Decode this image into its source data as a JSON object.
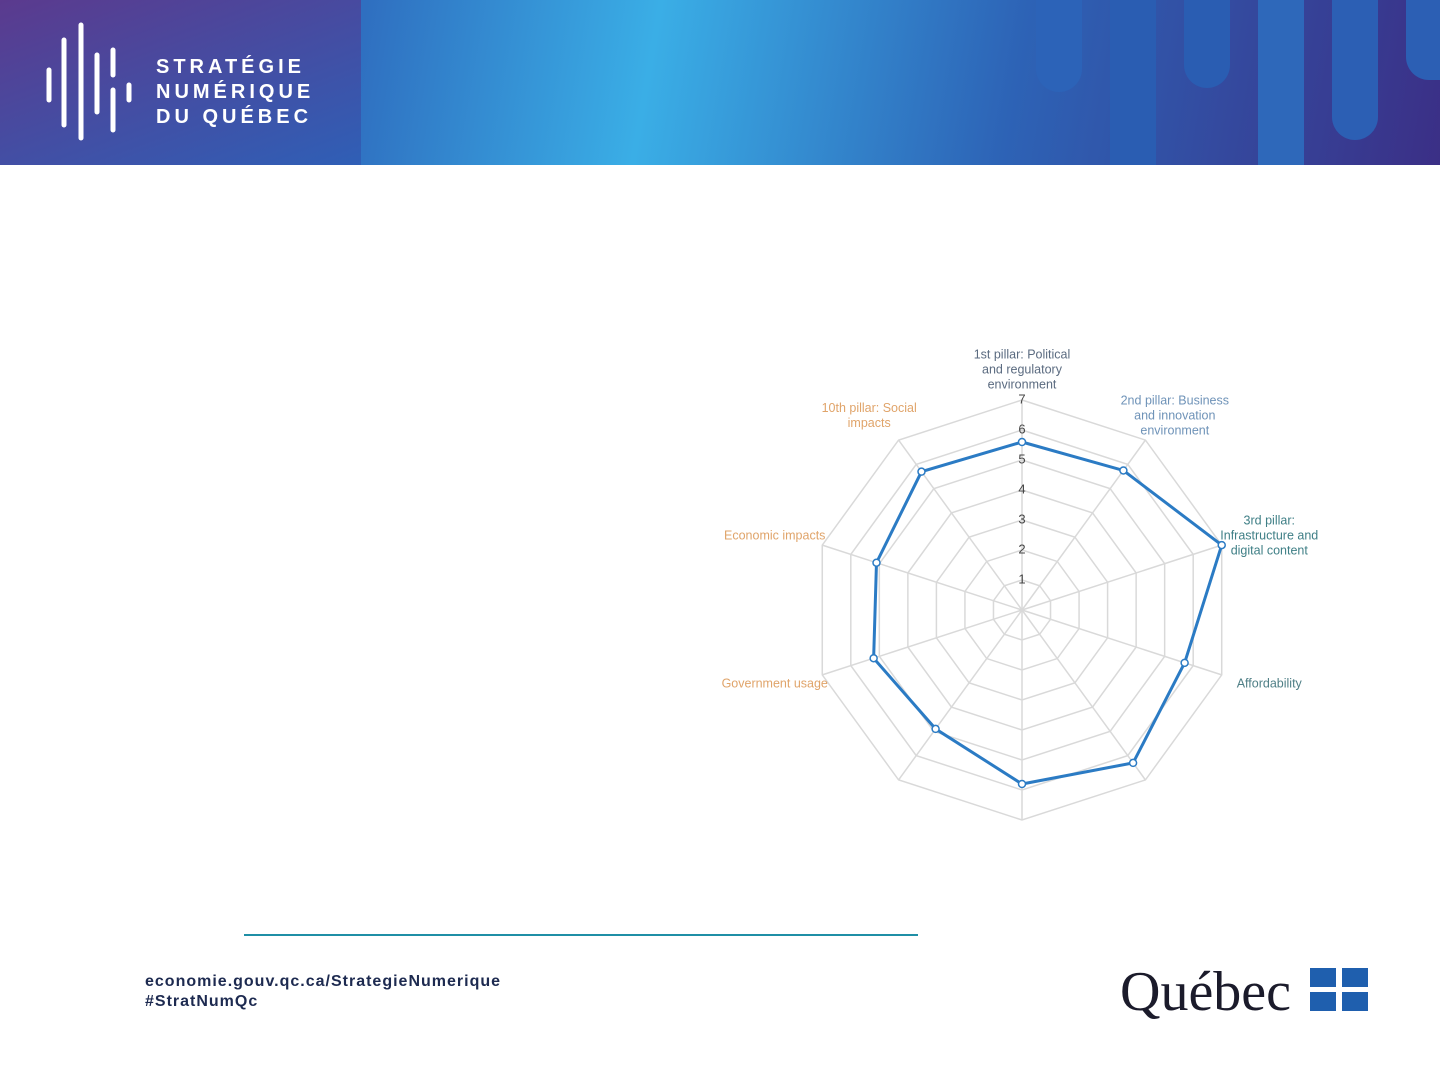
{
  "header": {
    "logo_lines": [
      "STRATÉGIE",
      "NUMÉRIQUE",
      "DU QUÉBEC"
    ]
  },
  "chart_data": {
    "type": "radar",
    "categories": [
      "1st pillar: Political and regulatory environment",
      "2nd pillar: Business and innovation environment",
      "3rd pillar: Infrastructure and digital content",
      "Affordability",
      null,
      null,
      null,
      "Government usage",
      "Economic impacts",
      "10th pillar: Social impacts"
    ],
    "category_colors": [
      "#5b6b80",
      "#6f93b8",
      "#3f7f86",
      "#4f7f86",
      "#e07a5f",
      "#e07a5f",
      "#e07a5f",
      "#e0a46a",
      "#e0a46a",
      "#e0a46a"
    ],
    "series": [
      {
        "color": "#2b7bc4",
        "values": [
          5.6,
          5.75,
          7.0,
          5.7,
          6.3,
          5.8,
          4.9,
          5.2,
          5.1,
          5.7
        ]
      }
    ],
    "ylim": [
      0,
      7
    ],
    "yticks": [
      1,
      2,
      3,
      4,
      5,
      6,
      7
    ],
    "grid": true
  },
  "footer": {
    "url": "economie.gouv.qc.ca/StrategieNumerique",
    "hashtag": "#StratNumQc",
    "brand": "Québec"
  }
}
